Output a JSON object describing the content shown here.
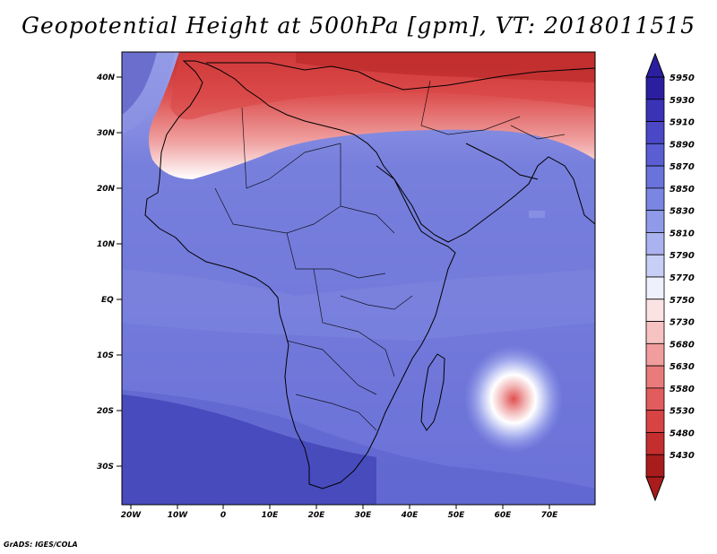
{
  "title": "Geopotential Height at 500hPa [gpm], VT: 2018011515",
  "footer": "GrADS: IGES/COLA",
  "map": {
    "lat_labels": [
      "40N",
      "30N",
      "20N",
      "10N",
      "EQ",
      "10S",
      "20S",
      "30S"
    ],
    "lon_labels": [
      "20W",
      "10W",
      "0",
      "10E",
      "20E",
      "30E",
      "40E",
      "50E",
      "60E",
      "70E"
    ]
  },
  "colorbar": {
    "levels": [
      "5950",
      "5930",
      "5910",
      "5890",
      "5870",
      "5850",
      "5830",
      "5810",
      "5790",
      "5770",
      "5750",
      "5730",
      "5680",
      "5630",
      "5580",
      "5530",
      "5480",
      "5430"
    ],
    "colors": [
      "#2b1fa0",
      "#3a33b6",
      "#4a48c6",
      "#5a5ed2",
      "#6a72db",
      "#7a86e2",
      "#8f9be8",
      "#aab3ef",
      "#c8cff6",
      "#eef0fc",
      "#fbe3e3",
      "#f7c2c2",
      "#f19d9d",
      "#ea7b7b",
      "#e15c5c",
      "#d84343",
      "#c42e2e",
      "#a81c1c"
    ]
  },
  "colors": {
    "ocean_blue": "#6a72db",
    "high_red": "#c42e2e"
  }
}
